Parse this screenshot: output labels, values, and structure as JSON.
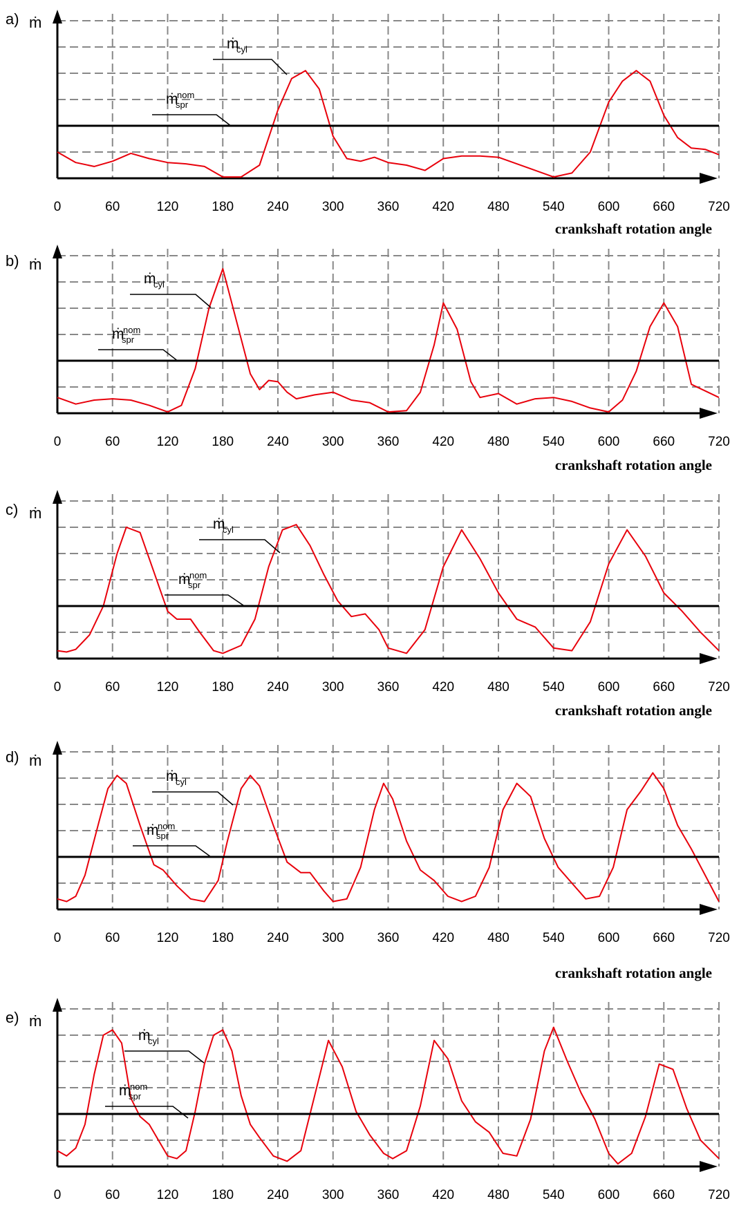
{
  "chart_data": [
    {
      "type": "line",
      "panel": "a)",
      "ylabel": "ṁ",
      "xlabel": "crankshaft rotation angle",
      "xlim": [
        0,
        720
      ],
      "xticks": [
        "0",
        "60",
        "120",
        "180",
        "240",
        "300",
        "360",
        "420",
        "480",
        "540",
        "600",
        "660",
        "720"
      ],
      "y_gridlines": 6,
      "ylim": [
        0,
        6
      ],
      "annotations": [
        {
          "main": "ṁ",
          "sub": "cyl",
          "sup": ""
        },
        {
          "main": "ṁ",
          "sub": "spr",
          "sup": "nom"
        }
      ],
      "series": [
        {
          "name": "ṁcyl",
          "color": "#e8000b",
          "x": [
            0,
            10,
            20,
            40,
            60,
            80,
            100,
            120,
            140,
            160,
            180,
            200,
            220,
            240,
            255,
            270,
            285,
            300,
            315,
            330,
            345,
            360,
            380,
            400,
            420,
            440,
            460,
            480,
            500,
            520,
            540,
            560,
            580,
            600,
            615,
            630,
            645,
            660,
            675,
            690,
            705,
            720
          ],
          "y": [
            1.0,
            0.8,
            0.6,
            0.45,
            0.65,
            0.95,
            0.75,
            0.6,
            0.55,
            0.45,
            0.05,
            0.05,
            0.5,
            2.6,
            3.8,
            4.1,
            3.4,
            1.6,
            0.75,
            0.65,
            0.8,
            0.6,
            0.5,
            0.3,
            0.75,
            0.85,
            0.85,
            0.8,
            0.55,
            0.3,
            0.05,
            0.2,
            1.0,
            2.9,
            3.7,
            4.1,
            3.7,
            2.4,
            1.55,
            1.15,
            1.1,
            0.9
          ]
        },
        {
          "name": "ṁspr nom",
          "color": "#000000",
          "x": [
            0,
            720
          ],
          "y": [
            2.0,
            2.0
          ]
        }
      ]
    },
    {
      "type": "line",
      "panel": "b)",
      "ylabel": "ṁ",
      "xlabel": "crankshaft rotation angle",
      "xlim": [
        0,
        720
      ],
      "xticks": [
        "0",
        "60",
        "120",
        "180",
        "240",
        "300",
        "360",
        "420",
        "480",
        "540",
        "600",
        "660",
        "720"
      ],
      "y_gridlines": 6,
      "ylim": [
        0,
        6
      ],
      "annotations": [
        {
          "main": "ṁ",
          "sub": "cyl",
          "sup": ""
        },
        {
          "main": "ṁ",
          "sub": "spr",
          "sup": "nom"
        }
      ],
      "series": [
        {
          "name": "ṁcyl",
          "color": "#e8000b",
          "x": [
            0,
            20,
            40,
            60,
            80,
            100,
            120,
            135,
            150,
            165,
            180,
            195,
            210,
            220,
            230,
            240,
            250,
            260,
            280,
            300,
            320,
            340,
            360,
            380,
            395,
            410,
            420,
            435,
            450,
            460,
            480,
            500,
            520,
            540,
            560,
            580,
            600,
            615,
            630,
            645,
            660,
            675,
            690,
            705,
            720
          ],
          "y": [
            0.6,
            0.35,
            0.5,
            0.55,
            0.5,
            0.3,
            0.05,
            0.3,
            1.7,
            4.0,
            5.5,
            3.5,
            1.5,
            0.9,
            1.25,
            1.2,
            0.8,
            0.55,
            0.7,
            0.8,
            0.5,
            0.4,
            0.05,
            0.1,
            0.8,
            2.6,
            4.2,
            3.2,
            1.2,
            0.6,
            0.75,
            0.35,
            0.55,
            0.6,
            0.45,
            0.2,
            0.05,
            0.5,
            1.6,
            3.3,
            4.2,
            3.3,
            1.1,
            0.85,
            0.6
          ]
        },
        {
          "name": "ṁspr nom",
          "color": "#000000",
          "x": [
            0,
            720
          ],
          "y": [
            2.0,
            2.0
          ]
        }
      ]
    },
    {
      "type": "line",
      "panel": "c)",
      "ylabel": "ṁ",
      "xlabel": "crankshaft rotation angle",
      "xlim": [
        0,
        720
      ],
      "xticks": [
        "0",
        "60",
        "120",
        "180",
        "240",
        "300",
        "360",
        "420",
        "480",
        "540",
        "600",
        "660",
        "720"
      ],
      "y_gridlines": 6,
      "ylim": [
        0,
        6
      ],
      "annotations": [
        {
          "main": "ṁ",
          "sub": "cyl",
          "sup": ""
        },
        {
          "main": "ṁ",
          "sub": "spr",
          "sup": "nom"
        }
      ],
      "series": [
        {
          "name": "ṁcyl",
          "color": "#e8000b",
          "x": [
            0,
            10,
            20,
            35,
            50,
            65,
            75,
            90,
            105,
            120,
            130,
            145,
            155,
            170,
            180,
            200,
            215,
            230,
            245,
            260,
            275,
            290,
            305,
            320,
            335,
            350,
            360,
            380,
            400,
            420,
            440,
            460,
            480,
            500,
            520,
            540,
            560,
            580,
            600,
            620,
            640,
            660,
            680,
            700,
            720
          ],
          "y": [
            0.3,
            0.25,
            0.35,
            0.9,
            2.0,
            4.0,
            5.0,
            4.8,
            3.3,
            1.8,
            1.5,
            1.5,
            1.0,
            0.3,
            0.2,
            0.5,
            1.5,
            3.5,
            4.9,
            5.1,
            4.3,
            3.2,
            2.2,
            1.6,
            1.7,
            1.1,
            0.4,
            0.2,
            1.1,
            3.5,
            4.9,
            3.8,
            2.5,
            1.5,
            1.2,
            0.4,
            0.3,
            1.4,
            3.6,
            4.9,
            3.9,
            2.5,
            1.8,
            1.0,
            0.3
          ]
        },
        {
          "name": "ṁspr nom",
          "color": "#000000",
          "x": [
            0,
            720
          ],
          "y": [
            2.0,
            2.0
          ]
        }
      ]
    },
    {
      "type": "line",
      "panel": "d)",
      "ylabel": "ṁ",
      "xlabel": "crankshaft rotation angle",
      "xlim": [
        0,
        720
      ],
      "xticks": [
        "0",
        "60",
        "120",
        "180",
        "240",
        "300",
        "360",
        "420",
        "480",
        "540",
        "600",
        "660",
        "720"
      ],
      "y_gridlines": 6,
      "ylim": [
        0,
        6
      ],
      "annotations": [
        {
          "main": "ṁ",
          "sub": "cyl",
          "sup": ""
        },
        {
          "main": "ṁ",
          "sub": "spr",
          "sup": "nom"
        }
      ],
      "series": [
        {
          "name": "ṁcyl",
          "color": "#e8000b",
          "x": [
            0,
            10,
            20,
            30,
            45,
            55,
            65,
            75,
            90,
            105,
            115,
            130,
            145,
            160,
            175,
            185,
            200,
            210,
            220,
            235,
            250,
            265,
            275,
            290,
            300,
            315,
            330,
            345,
            355,
            365,
            380,
            395,
            410,
            425,
            440,
            455,
            470,
            485,
            500,
            515,
            530,
            545,
            560,
            575,
            590,
            605,
            620,
            635,
            648,
            660,
            675,
            690,
            705,
            720
          ],
          "y": [
            0.4,
            0.3,
            0.5,
            1.3,
            3.3,
            4.6,
            5.1,
            4.8,
            3.2,
            1.7,
            1.5,
            0.9,
            0.4,
            0.3,
            1.1,
            2.6,
            4.6,
            5.1,
            4.7,
            3.2,
            1.8,
            1.4,
            1.4,
            0.7,
            0.3,
            0.4,
            1.6,
            3.8,
            4.8,
            4.2,
            2.6,
            1.5,
            1.1,
            0.5,
            0.3,
            0.5,
            1.6,
            3.8,
            4.8,
            4.3,
            2.7,
            1.6,
            1.0,
            0.4,
            0.5,
            1.6,
            3.8,
            4.5,
            5.2,
            4.6,
            3.2,
            2.3,
            1.3,
            0.3
          ]
        },
        {
          "name": "ṁspr nom",
          "color": "#000000",
          "x": [
            0,
            720
          ],
          "y": [
            2.0,
            2.0
          ]
        }
      ]
    },
    {
      "type": "line",
      "panel": "e)",
      "ylabel": "ṁ",
      "xlabel": "",
      "xlim": [
        0,
        720
      ],
      "xticks": [
        "0",
        "60",
        "120",
        "180",
        "240",
        "300",
        "360",
        "420",
        "480",
        "540",
        "600",
        "660",
        "720"
      ],
      "y_gridlines": 6,
      "ylim": [
        0,
        6
      ],
      "annotations": [
        {
          "main": "ṁ",
          "sub": "cyl",
          "sup": ""
        },
        {
          "main": "ṁ",
          "sub": "spr",
          "sup": "nom"
        }
      ],
      "series": [
        {
          "name": "ṁcyl",
          "color": "#e8000b",
          "x": [
            0,
            10,
            20,
            30,
            40,
            50,
            60,
            70,
            80,
            90,
            100,
            110,
            120,
            130,
            140,
            150,
            160,
            170,
            180,
            190,
            200,
            210,
            220,
            235,
            250,
            265,
            280,
            295,
            310,
            325,
            340,
            355,
            365,
            380,
            395,
            410,
            425,
            440,
            455,
            470,
            485,
            500,
            515,
            530,
            540,
            555,
            570,
            585,
            600,
            610,
            625,
            640,
            655,
            670,
            685,
            700,
            720
          ],
          "y": [
            0.6,
            0.4,
            0.7,
            1.6,
            3.5,
            5.0,
            5.2,
            4.7,
            2.6,
            1.9,
            1.6,
            1.0,
            0.4,
            0.3,
            0.6,
            2.1,
            3.9,
            5.0,
            5.2,
            4.4,
            2.7,
            1.6,
            1.1,
            0.4,
            0.2,
            0.6,
            2.7,
            4.8,
            3.8,
            2.1,
            1.2,
            0.5,
            0.3,
            0.6,
            2.3,
            4.8,
            4.1,
            2.5,
            1.7,
            1.3,
            0.5,
            0.4,
            1.8,
            4.4,
            5.3,
            4.0,
            2.8,
            1.8,
            0.5,
            0.1,
            0.5,
            1.9,
            3.9,
            3.7,
            2.2,
            1.0,
            0.3
          ]
        },
        {
          "name": "ṁspr nom",
          "color": "#000000",
          "x": [
            0,
            720
          ],
          "y": [
            2.0,
            2.0
          ]
        }
      ]
    }
  ]
}
